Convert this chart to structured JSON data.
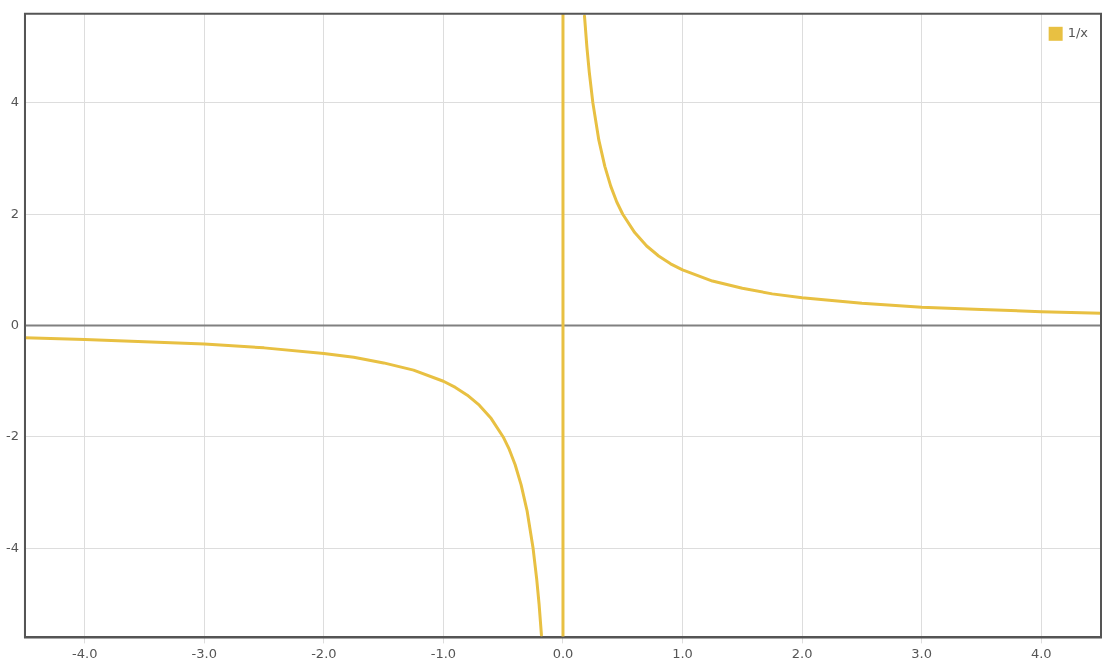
{
  "chart_data": {
    "type": "line",
    "xlim": [
      -4.5,
      4.5
    ],
    "ylim": [
      -5.6,
      5.6
    ],
    "xticks": [
      {
        "value": -4,
        "label": "-4.0"
      },
      {
        "value": -3,
        "label": "-3.0"
      },
      {
        "value": -2,
        "label": "-2.0"
      },
      {
        "value": -1,
        "label": "-1.0"
      },
      {
        "value": 0,
        "label": "0.0"
      },
      {
        "value": 1,
        "label": "1.0"
      },
      {
        "value": 2,
        "label": "2.0"
      },
      {
        "value": 3,
        "label": "3.0"
      },
      {
        "value": 4,
        "label": "4.0"
      }
    ],
    "yticks": [
      -4,
      -2,
      0,
      2,
      4
    ],
    "grid": true,
    "legend": "top right",
    "marker": "none",
    "line_style": "solid",
    "ref_lines": [
      {
        "axis": "y",
        "value": 0,
        "color": "#808080"
      }
    ],
    "series": [
      {
        "name": "1/x",
        "color": "#e8c042",
        "x": [
          -4.5,
          -4,
          -3.5,
          -3,
          -2.5,
          -2,
          -1.75,
          -1.5,
          -1.25,
          -1,
          -0.9,
          -0.8,
          -0.7,
          -0.6,
          -0.5,
          -0.45,
          -0.4,
          -0.35,
          -0.3,
          -0.25,
          -0.22,
          -0.2,
          -0.18,
          -0.09,
          0,
          0,
          0.09,
          0.18,
          0.2,
          0.22,
          0.25,
          0.3,
          0.35,
          0.4,
          0.45,
          0.5,
          0.6,
          0.7,
          0.8,
          0.9,
          1,
          1.25,
          1.5,
          1.75,
          2,
          2.5,
          3,
          3.5,
          4,
          4.5
        ],
        "values": [
          -0.22,
          -0.25,
          -0.29,
          -0.33,
          -0.4,
          -0.5,
          -0.57,
          -0.67,
          -0.8,
          -1,
          -1.11,
          -1.25,
          -1.43,
          -1.67,
          -2,
          -2.22,
          -2.5,
          -2.86,
          -3.33,
          -4,
          -4.55,
          -5,
          -5.56,
          null,
          -5.6,
          5.6,
          null,
          5.56,
          5,
          4.55,
          4,
          3.33,
          2.86,
          2.5,
          2.22,
          2,
          1.67,
          1.43,
          1.25,
          1.11,
          1,
          0.8,
          0.67,
          0.57,
          0.5,
          0.4,
          0.33,
          0.29,
          0.25,
          0.22
        ]
      }
    ]
  }
}
